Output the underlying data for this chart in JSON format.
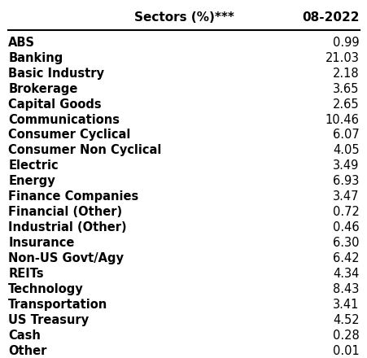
{
  "header_left": "Sectors (%)***",
  "header_right": "08-2022",
  "rows": [
    [
      "ABS",
      "0.99"
    ],
    [
      "Banking",
      "21.03"
    ],
    [
      "Basic Industry",
      "2.18"
    ],
    [
      "Brokerage",
      "3.65"
    ],
    [
      "Capital Goods",
      "2.65"
    ],
    [
      "Communications",
      "10.46"
    ],
    [
      "Consumer Cyclical",
      "6.07"
    ],
    [
      "Consumer Non Cyclical",
      "4.05"
    ],
    [
      "Electric",
      "3.49"
    ],
    [
      "Energy",
      "6.93"
    ],
    [
      "Finance Companies",
      "3.47"
    ],
    [
      "Financial (Other)",
      "0.72"
    ],
    [
      "Industrial (Other)",
      "0.46"
    ],
    [
      "Insurance",
      "6.30"
    ],
    [
      "Non-US Govt/Agy",
      "6.42"
    ],
    [
      "REITs",
      "4.34"
    ],
    [
      "Technology",
      "8.43"
    ],
    [
      "Transportation",
      "3.41"
    ],
    [
      "US Treasury",
      "4.52"
    ],
    [
      "Cash",
      "0.28"
    ],
    [
      "Other",
      "0.01"
    ]
  ],
  "bg_color": "#ffffff",
  "header_font_size": 11,
  "row_font_size": 10.5
}
